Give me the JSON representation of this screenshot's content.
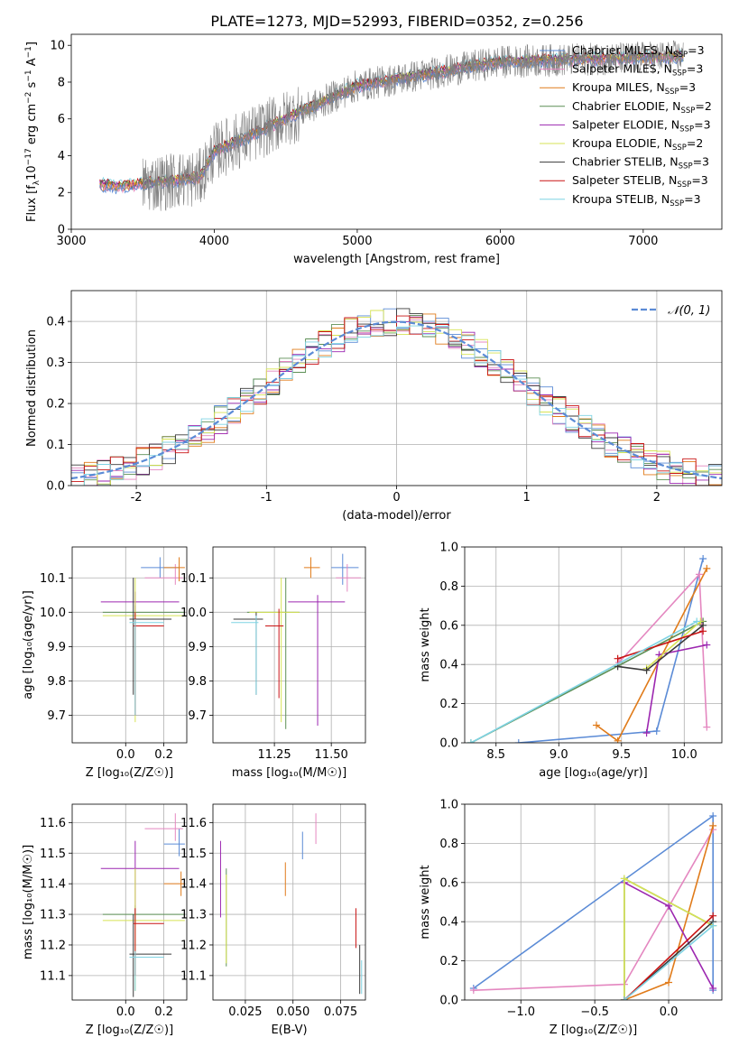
{
  "figure": {
    "title": "PLATE=1273, MJD=52993, FIBERID=0352, z=0.256",
    "series_styles": [
      {
        "name": "Chabrier MILES",
        "color": "#5b8bd6"
      },
      {
        "name": "Salpeter MILES",
        "color": "#e487c0"
      },
      {
        "name": "Kroupa MILES",
        "color": "#e07b1a"
      },
      {
        "name": "Chabrier ELODIE",
        "color": "#5c8f55"
      },
      {
        "name": "Salpeter ELODIE",
        "color": "#9c27b0"
      },
      {
        "name": "Kroupa ELODIE",
        "color": "#d7e354"
      },
      {
        "name": "Chabrier STELIB",
        "color": "#3a3a3a"
      },
      {
        "name": "Salpeter STELIB",
        "color": "#c91414"
      },
      {
        "name": "Kroupa STELIB",
        "color": "#7fd3e3"
      }
    ]
  },
  "chart_data": [
    {
      "id": "spectrum",
      "type": "line",
      "xlabel": "wavelength [Angstrom, rest frame]",
      "ylabel_main": "Flux [f",
      "ylabel_sub1": "λ",
      "ylabel_mid": "10",
      "ylabel_sup1": "−17",
      "ylabel_tail": " erg cm",
      "ylabel_sup2": "−2",
      "ylabel_tail2": " s",
      "ylabel_sup3": "−1",
      "ylabel_tail3": " A",
      "ylabel_sup4": "−1",
      "ylabel_end": "]",
      "xlim": [
        3000,
        7550
      ],
      "ylim": [
        0,
        10.6
      ],
      "xticks": [
        3000,
        4000,
        5000,
        6000,
        7000
      ],
      "yticks": [
        0,
        2,
        4,
        6,
        8,
        10
      ],
      "grid": false,
      "legend_position": "top-right",
      "legend": [
        {
          "label": "Chabrier MILES, N",
          "sub": "SSP",
          "suffix": "=3"
        },
        {
          "label": "Salpeter MILES, N",
          "sub": "SSP",
          "suffix": "=3"
        },
        {
          "label": "Kroupa MILES, N",
          "sub": "SSP",
          "suffix": "=3"
        },
        {
          "label": "Chabrier ELODIE, N",
          "sub": "SSP",
          "suffix": "=2"
        },
        {
          "label": "Salpeter ELODIE, N",
          "sub": "SSP",
          "suffix": "=3"
        },
        {
          "label": "Kroupa ELODIE, N",
          "sub": "SSP",
          "suffix": "=2"
        },
        {
          "label": "Chabrier STELIB, N",
          "sub": "SSP",
          "suffix": "=3"
        },
        {
          "label": "Salpeter STELIB, N",
          "sub": "SSP",
          "suffix": "=3"
        },
        {
          "label": "Kroupa STELIB, N",
          "sub": "SSP",
          "suffix": "=3"
        }
      ],
      "observed_color": "#808080",
      "model_start": 3200,
      "observed_start": 3500,
      "x_end": 7280
    },
    {
      "id": "residuals",
      "type": "line",
      "xlabel": "(data-model)/error",
      "ylabel": "Normed distribution",
      "xlim": [
        -2.5,
        2.5
      ],
      "ylim": [
        0,
        0.475
      ],
      "xticks": [
        -2,
        -1,
        0,
        1,
        2
      ],
      "yticks": [
        0,
        0.1,
        0.2,
        0.3,
        0.4
      ],
      "grid": true,
      "legend_position": "top-right",
      "legend_label": "𝒩(0, 1)",
      "gaussian_color": "#5b8bd6",
      "bin_width": 0.1
    },
    {
      "id": "age_vs_Z",
      "type": "scatter",
      "xlabel": "Z [log₁₀(Z/Z☉)]",
      "ylabel": "age  [log₁₀(age/yr)]",
      "xlim": [
        -0.28,
        0.32
      ],
      "ylim": [
        9.62,
        10.19
      ],
      "xticks": [
        0,
        0.2
      ],
      "xticklabels": [
        "0.0",
        "0.2"
      ],
      "yticks": [
        9.7,
        9.8,
        9.9,
        10.0,
        10.1
      ],
      "grid": true,
      "points": [
        {
          "s": 0,
          "x": 0.18,
          "y": 10.13,
          "xe": [
            0.08,
            0.28
          ],
          "ye": [
            10.1,
            10.16
          ]
        },
        {
          "s": 1,
          "x": 0.26,
          "y": 10.1,
          "xe": [
            0.1,
            0.3
          ],
          "ye": [
            10.08,
            10.14
          ]
        },
        {
          "s": 2,
          "x": 0.28,
          "y": 10.13,
          "xe": [
            0.2,
            0.31
          ],
          "ye": [
            10.09,
            10.16
          ]
        },
        {
          "s": 3,
          "x": 0.05,
          "y": 10.0,
          "xe": [
            -0.12,
            0.31
          ],
          "ye": [
            9.98,
            10.02
          ]
        },
        {
          "s": 4,
          "x": 0.05,
          "y": 10.03,
          "xe": [
            -0.13,
            0.28
          ],
          "ye": [
            10.0,
            10.06
          ]
        },
        {
          "s": 5,
          "x": 0.05,
          "y": 9.99,
          "xe": [
            -0.12,
            0.31
          ],
          "ye": [
            9.68,
            10.1
          ]
        },
        {
          "s": 6,
          "x": 0.04,
          "y": 9.98,
          "xe": [
            0.02,
            0.24
          ],
          "ye": [
            9.76,
            10.1
          ]
        },
        {
          "s": 7,
          "x": 0.05,
          "y": 9.96,
          "xe": [
            0.04,
            0.2
          ],
          "ye": [
            9.7,
            10.0
          ]
        },
        {
          "s": 8,
          "x": 0.05,
          "y": 9.97,
          "xe": [
            0.02,
            0.2
          ],
          "ye": [
            9.7,
            9.98
          ]
        }
      ]
    },
    {
      "id": "age_vs_mass",
      "type": "scatter",
      "xlabel": "mass [log₁₀(M/M☉)]",
      "ylabel": "",
      "xlim": [
        10.98,
        11.65
      ],
      "ylim": [
        9.62,
        10.19
      ],
      "xticks": [
        11.25,
        11.5
      ],
      "xticklabels": [
        "11.25",
        "11.50"
      ],
      "yticks": [
        9.7,
        9.8,
        9.9,
        10.0,
        10.1
      ],
      "grid": true,
      "points": [
        {
          "s": 0,
          "x": 11.55,
          "y": 10.13,
          "xe": [
            11.5,
            11.62
          ],
          "ye": [
            10.08,
            10.17
          ]
        },
        {
          "s": 1,
          "x": 11.57,
          "y": 10.1,
          "xe": [
            11.52,
            11.63
          ],
          "ye": [
            10.06,
            10.14
          ]
        },
        {
          "s": 2,
          "x": 11.41,
          "y": 10.13,
          "xe": [
            11.38,
            11.45
          ],
          "ye": [
            10.1,
            10.16
          ]
        },
        {
          "s": 3,
          "x": 11.3,
          "y": 10.0,
          "xe": [
            11.13,
            11.36
          ],
          "ye": [
            9.66,
            10.1
          ]
        },
        {
          "s": 4,
          "x": 11.44,
          "y": 10.03,
          "xe": [
            11.31,
            11.56
          ],
          "ye": [
            9.67,
            10.05
          ]
        },
        {
          "s": 5,
          "x": 11.28,
          "y": 10.0,
          "xe": [
            11.14,
            11.36
          ],
          "ye": [
            9.68,
            10.1
          ]
        },
        {
          "s": 6,
          "x": 11.17,
          "y": 9.98,
          "xe": [
            11.07,
            11.2
          ],
          "ye": [
            9.76,
            10.0
          ]
        },
        {
          "s": 7,
          "x": 11.27,
          "y": 9.96,
          "xe": [
            11.21,
            11.29
          ],
          "ye": [
            9.75,
            10.01
          ]
        },
        {
          "s": 8,
          "x": 11.17,
          "y": 9.97,
          "xe": [
            11.06,
            11.18
          ],
          "ye": [
            9.76,
            9.99
          ]
        }
      ]
    },
    {
      "id": "weight_vs_age",
      "type": "line",
      "xlabel": "age  [log₁₀(age/yr)]",
      "ylabel": "mass weight",
      "xlim": [
        8.25,
        10.3
      ],
      "ylim": [
        0,
        1
      ],
      "xticks": [
        8.5,
        9.0,
        9.5,
        10.0
      ],
      "xticklabels": [
        "8.5",
        "9.0",
        "9.5",
        "10.0"
      ],
      "yticks": [
        0,
        0.2,
        0.4,
        0.6,
        0.8,
        1.0
      ],
      "grid": true,
      "series": [
        {
          "s": 0,
          "x": [
            8.68,
            9.78,
            10.15
          ],
          "y": [
            0.0,
            0.06,
            0.94
          ]
        },
        {
          "s": 1,
          "x": [
            9.48,
            10.12,
            10.18
          ],
          "y": [
            0.41,
            0.86,
            0.08
          ]
        },
        {
          "s": 2,
          "x": [
            9.3,
            9.47,
            10.18
          ],
          "y": [
            0.09,
            0.01,
            0.89
          ]
        },
        {
          "s": 3,
          "x": [
            8.3,
            10.15
          ],
          "y": [
            0.0,
            0.62
          ]
        },
        {
          "s": 4,
          "x": [
            9.7,
            9.8,
            10.18
          ],
          "y": [
            0.05,
            0.45,
            0.5
          ]
        },
        {
          "s": 5,
          "x": [
            9.7,
            10.13
          ],
          "y": [
            0.38,
            0.62
          ]
        },
        {
          "s": 6,
          "x": [
            9.47,
            9.7,
            10.15
          ],
          "y": [
            0.39,
            0.37,
            0.6
          ]
        },
        {
          "s": 7,
          "x": [
            9.47,
            10.15
          ],
          "y": [
            0.43,
            0.57
          ]
        },
        {
          "s": 8,
          "x": [
            8.3,
            10.1
          ],
          "y": [
            0.0,
            0.62
          ]
        }
      ]
    },
    {
      "id": "mass_vs_Z",
      "type": "scatter",
      "xlabel": "Z [log₁₀(Z/Z☉)]",
      "ylabel": "mass [log₁₀(M/M☉)]",
      "xlim": [
        -0.28,
        0.32
      ],
      "ylim": [
        11.02,
        11.66
      ],
      "xticks": [
        0,
        0.2
      ],
      "xticklabels": [
        "0.0",
        "0.2"
      ],
      "yticks": [
        11.1,
        11.2,
        11.3,
        11.4,
        11.5,
        11.6
      ],
      "grid": true,
      "points": [
        {
          "s": 0,
          "x": 0.28,
          "y": 11.53,
          "xe": [
            0.2,
            0.31
          ],
          "ye": [
            11.49,
            11.58
          ]
        },
        {
          "s": 1,
          "x": 0.26,
          "y": 11.58,
          "xe": [
            0.1,
            0.3
          ],
          "ye": [
            11.54,
            11.63
          ]
        },
        {
          "s": 2,
          "x": 0.29,
          "y": 11.4,
          "xe": [
            0.2,
            0.31
          ],
          "ye": [
            11.36,
            11.44
          ]
        },
        {
          "s": 3,
          "x": 0.05,
          "y": 11.3,
          "xe": [
            -0.12,
            0.31
          ],
          "ye": [
            11.27,
            11.33
          ]
        },
        {
          "s": 4,
          "x": 0.05,
          "y": 11.45,
          "xe": [
            -0.13,
            0.28
          ],
          "ye": [
            11.3,
            11.54
          ]
        },
        {
          "s": 5,
          "x": 0.05,
          "y": 11.28,
          "xe": [
            -0.12,
            0.31
          ],
          "ye": [
            11.05,
            11.45
          ]
        },
        {
          "s": 6,
          "x": 0.04,
          "y": 11.17,
          "xe": [
            0.02,
            0.24
          ],
          "ye": [
            11.03,
            11.3
          ]
        },
        {
          "s": 7,
          "x": 0.05,
          "y": 11.27,
          "xe": [
            0.04,
            0.2
          ],
          "ye": [
            11.1,
            11.32
          ]
        },
        {
          "s": 8,
          "x": 0.05,
          "y": 11.16,
          "xe": [
            0.02,
            0.2
          ],
          "ye": [
            11.05,
            11.18
          ]
        }
      ]
    },
    {
      "id": "mass_vs_ebv",
      "type": "scatter",
      "xlabel": "E(B-V)",
      "ylabel": "",
      "xlim": [
        0.008,
        0.088
      ],
      "ylim": [
        11.02,
        11.66
      ],
      "xticks": [
        0.025,
        0.05,
        0.075
      ],
      "xticklabels": [
        "0.025",
        "0.050",
        "0.075"
      ],
      "yticks": [
        11.1,
        11.2,
        11.3,
        11.4,
        11.5,
        11.6
      ],
      "grid": true,
      "points": [
        {
          "s": 0,
          "x": 0.055,
          "y": 11.53,
          "ye": [
            11.48,
            11.57
          ]
        },
        {
          "s": 1,
          "x": 0.062,
          "y": 11.58,
          "ye": [
            11.53,
            11.63
          ]
        },
        {
          "s": 2,
          "x": 0.046,
          "y": 11.4,
          "ye": [
            11.36,
            11.47
          ]
        },
        {
          "s": 3,
          "x": 0.015,
          "y": 11.3,
          "ye": [
            11.13,
            11.45
          ]
        },
        {
          "s": 4,
          "x": 0.012,
          "y": 11.45,
          "ye": [
            11.29,
            11.54
          ]
        },
        {
          "s": 5,
          "x": 0.015,
          "y": 11.28,
          "ye": [
            11.14,
            11.43
          ]
        },
        {
          "s": 6,
          "x": 0.085,
          "y": 11.17,
          "ye": [
            11.04,
            11.2
          ]
        },
        {
          "s": 7,
          "x": 0.083,
          "y": 11.27,
          "ye": [
            11.19,
            11.32
          ]
        },
        {
          "s": 8,
          "x": 0.086,
          "y": 11.14,
          "ye": [
            11.04,
            11.15
          ]
        }
      ]
    },
    {
      "id": "weight_vs_Z",
      "type": "line",
      "xlabel": "Z [log₁₀(Z/Z☉)]",
      "ylabel": "mass weight",
      "xlim": [
        -1.38,
        0.36
      ],
      "ylim": [
        0,
        1
      ],
      "xticks": [
        -1.0,
        -0.5,
        0.0
      ],
      "xticklabels": [
        "−1.0",
        "−0.5",
        "0.0"
      ],
      "yticks": [
        0,
        0.2,
        0.4,
        0.6,
        0.8,
        1.0
      ],
      "grid": true,
      "series": [
        {
          "s": 0,
          "x": [
            -1.32,
            0.3,
            0.3
          ],
          "y": [
            0.06,
            0.94,
            0.05
          ]
        },
        {
          "s": 1,
          "x": [
            -1.32,
            -0.3,
            0.3
          ],
          "y": [
            0.05,
            0.08,
            0.87
          ]
        },
        {
          "s": 2,
          "x": [
            -0.3,
            0.0,
            0.3
          ],
          "y": [
            0.0,
            0.09,
            0.89
          ]
        },
        {
          "s": 3,
          "x": [
            -0.3,
            -0.3,
            0.3
          ],
          "y": [
            0.0,
            0.62,
            0.38
          ]
        },
        {
          "s": 4,
          "x": [
            -0.3,
            0.0,
            0.3
          ],
          "y": [
            0.6,
            0.48,
            0.06
          ]
        },
        {
          "s": 5,
          "x": [
            -0.3,
            -0.3,
            0.3
          ],
          "y": [
            0.0,
            0.62,
            0.38
          ]
        },
        {
          "s": 6,
          "x": [
            -0.3,
            0.3
          ],
          "y": [
            0.0,
            0.4
          ]
        },
        {
          "s": 7,
          "x": [
            -0.3,
            0.3
          ],
          "y": [
            0.0,
            0.43
          ]
        },
        {
          "s": 8,
          "x": [
            -0.3,
            0.3
          ],
          "y": [
            0.0,
            0.38
          ]
        }
      ]
    }
  ]
}
